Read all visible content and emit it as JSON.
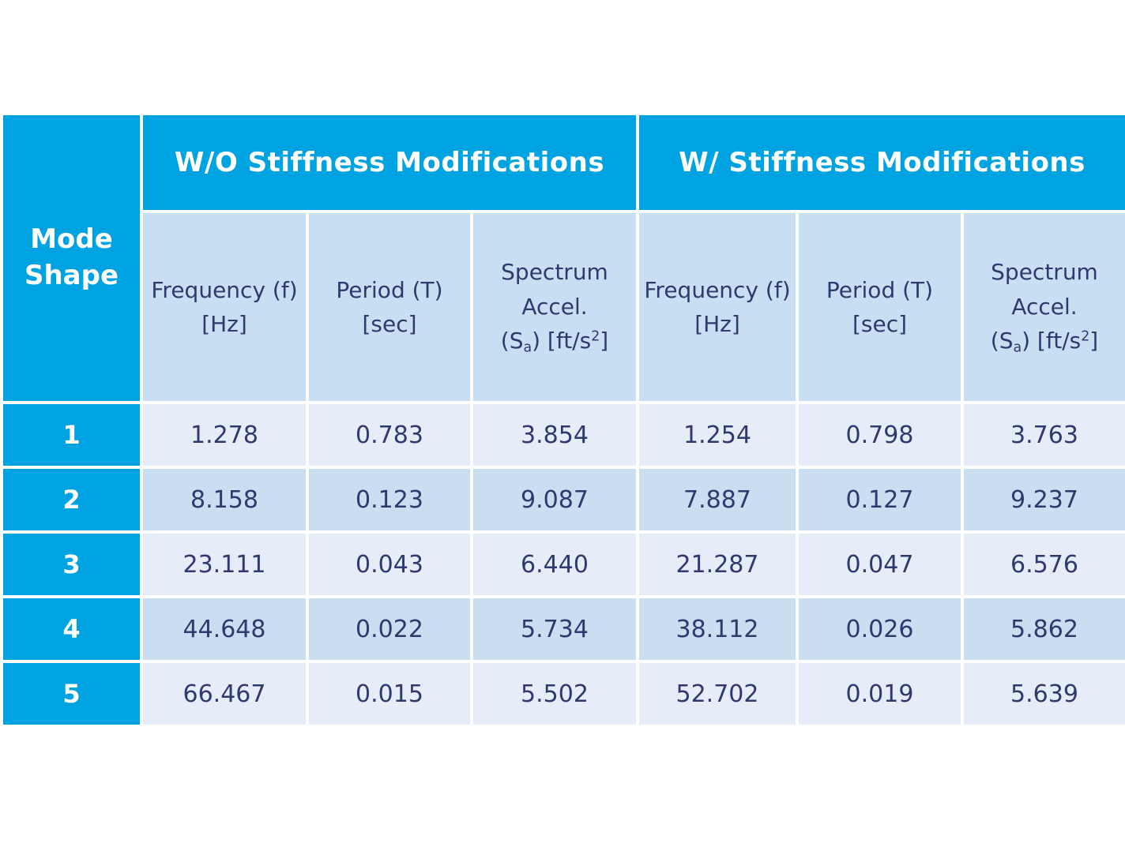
{
  "table": {
    "corner_header": {
      "line1": "Mode",
      "line2": "Shape"
    },
    "groups": [
      {
        "label": "W/O Stiffness Modifications"
      },
      {
        "label": "W/ Stiffness Modifications"
      }
    ],
    "sub_headers": {
      "frequency": {
        "line1": "Frequency (f)",
        "line2": "[Hz]"
      },
      "period": "Period (T) [sec]",
      "spectrum": {
        "line1": "Spectrum Accel.",
        "p1": "(S",
        "sub": "a",
        "p2": ") [ft/s",
        "sup": "2",
        "p3": "]"
      }
    },
    "rows": [
      {
        "mode": "1",
        "wo": [
          "1.278",
          "0.783",
          "3.854"
        ],
        "w": [
          "1.254",
          "0.798",
          "3.763"
        ]
      },
      {
        "mode": "2",
        "wo": [
          "8.158",
          "0.123",
          "9.087"
        ],
        "w": [
          "7.887",
          "0.127",
          "9.237"
        ]
      },
      {
        "mode": "3",
        "wo": [
          "23.111",
          "0.043",
          "6.440"
        ],
        "w": [
          "21.287",
          "0.047",
          "6.576"
        ]
      },
      {
        "mode": "4",
        "wo": [
          "44.648",
          "0.022",
          "5.734"
        ],
        "w": [
          "38.112",
          "0.026",
          "5.862"
        ]
      },
      {
        "mode": "5",
        "wo": [
          "66.467",
          "0.015",
          "5.502"
        ],
        "w": [
          "52.702",
          "0.019",
          "5.639"
        ]
      }
    ]
  },
  "colors": {
    "header_blue": "#00A3E2",
    "subheader_bg": "#C8DEF2",
    "row_odd_bg": "#E7EDF8",
    "row_even_bg": "#CADEF2",
    "text_navy": "#2E3A6D",
    "header_text": "#FFFFFF",
    "gutter": "#FFFFFF"
  },
  "chart_data": {
    "type": "table",
    "title": "",
    "column_groups": [
      "W/O Stiffness Modifications",
      "W/ Stiffness Modifications"
    ],
    "columns": [
      "Mode Shape",
      "Frequency (f) [Hz]",
      "Period (T) [sec]",
      "Spectrum Accel. (Sa) [ft/s2]",
      "Frequency (f) [Hz]",
      "Period (T) [sec]",
      "Spectrum Accel. (Sa) [ft/s2]"
    ],
    "rows": [
      [
        1,
        1.278,
        0.783,
        3.854,
        1.254,
        0.798,
        3.763
      ],
      [
        2,
        8.158,
        0.123,
        9.087,
        7.887,
        0.127,
        9.237
      ],
      [
        3,
        23.111,
        0.043,
        6.44,
        21.287,
        0.047,
        6.576
      ],
      [
        4,
        44.648,
        0.022,
        5.734,
        38.112,
        0.026,
        5.862
      ],
      [
        5,
        66.467,
        0.015,
        5.502,
        52.702,
        0.019,
        5.639
      ]
    ]
  }
}
